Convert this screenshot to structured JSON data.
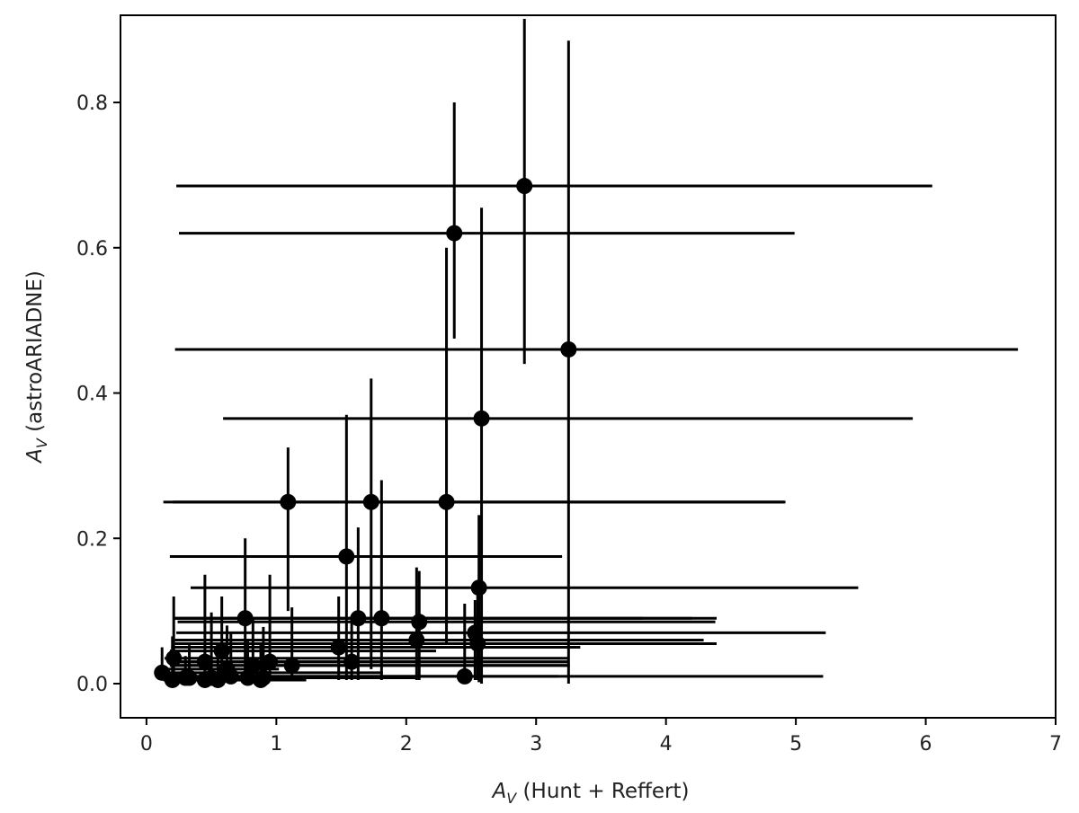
{
  "chart_data": {
    "type": "scatter",
    "title": "",
    "xlabel_math": "A",
    "xlabel_sub": "V",
    "xlabel_rest": " (Hunt + Reffert)",
    "ylabel_math": "A",
    "ylabel_sub": "V",
    "ylabel_rest": " (astroARIADNE)",
    "xlim": [
      -0.2,
      7.0
    ],
    "ylim": [
      -0.047,
      0.92
    ],
    "xticks": [
      0,
      1,
      2,
      3,
      4,
      5,
      6,
      7
    ],
    "yticks": [
      0.0,
      0.2,
      0.4,
      0.6,
      0.8
    ],
    "ytick_labels": [
      "0.0",
      "0.2",
      "0.4",
      "0.6",
      "0.8"
    ],
    "grid": false,
    "legend": false,
    "marker_color": "#000000",
    "series": [
      {
        "points": [
          {
            "x": 2.91,
            "y": 0.685,
            "xerr": [
              2.68,
              3.14
            ],
            "yerr": [
              0.245,
              0.23
            ]
          },
          {
            "x": 2.37,
            "y": 0.62,
            "xerr": [
              2.12,
              2.62
            ],
            "yerr": [
              0.145,
              0.18
            ]
          },
          {
            "x": 3.25,
            "y": 0.46,
            "xerr": [
              3.03,
              3.46
            ],
            "yerr": [
              0.46,
              0.425
            ]
          },
          {
            "x": 2.58,
            "y": 0.365,
            "xerr": [
              1.99,
              3.32
            ],
            "yerr": [
              0.365,
              0.29
            ]
          },
          {
            "x": 1.09,
            "y": 0.25,
            "xerr": [
              0.96,
              3.83
            ],
            "yerr": [
              0.15,
              0.075
            ]
          },
          {
            "x": 1.73,
            "y": 0.25,
            "xerr": [
              1.53,
              3.18
            ],
            "yerr": [
              0.23,
              0.17
            ]
          },
          {
            "x": 2.31,
            "y": 0.25,
            "xerr": [
              2.1,
              2.6
            ],
            "yerr": [
              0.195,
              0.35
            ]
          },
          {
            "x": 1.54,
            "y": 0.175,
            "xerr": [
              1.36,
              1.66
            ],
            "yerr": [
              0.17,
              0.195
            ]
          },
          {
            "x": 2.56,
            "y": 0.132,
            "xerr": [
              2.22,
              2.92
            ],
            "yerr": [
              0.13,
              0.1
            ]
          },
          {
            "x": 0.76,
            "y": 0.09,
            "xerr": [
              0.54,
              3.06
            ],
            "yerr": [
              0.085,
              0.11
            ]
          },
          {
            "x": 1.63,
            "y": 0.09,
            "xerr": [
              1.42,
              2.76
            ],
            "yerr": [
              0.085,
              0.125
            ]
          },
          {
            "x": 1.81,
            "y": 0.09,
            "xerr": [
              1.6,
              2.39
            ],
            "yerr": [
              0.085,
              0.19
            ]
          },
          {
            "x": 2.1,
            "y": 0.085,
            "xerr": [
              1.86,
              2.28
            ],
            "yerr": [
              0.08,
              0.07
            ]
          },
          {
            "x": 2.53,
            "y": 0.07,
            "xerr": [
              2.3,
              2.7
            ],
            "yerr": [
              0.065,
              0.045
            ]
          },
          {
            "x": 2.08,
            "y": 0.06,
            "xerr": [
              1.86,
              2.21
            ],
            "yerr": [
              0.055,
              0.1
            ]
          },
          {
            "x": 2.55,
            "y": 0.055,
            "xerr": [
              2.33,
              1.84
            ],
            "yerr": [
              0.05,
              0.07
            ]
          },
          {
            "x": 1.48,
            "y": 0.05,
            "xerr": [
              1.29,
              1.86
            ],
            "yerr": [
              0.045,
              0.07
            ]
          },
          {
            "x": 0.58,
            "y": 0.045,
            "xerr": [
              0.4,
              1.65
            ],
            "yerr": [
              0.04,
              0.075
            ]
          },
          {
            "x": 0.21,
            "y": 0.035,
            "xerr": [
              0.07,
              3.04
            ],
            "yerr": [
              0.03,
              0.085
            ]
          },
          {
            "x": 1.58,
            "y": 0.03,
            "xerr": [
              1.38,
              1.67
            ],
            "yerr": [
              0.025,
              0.06
            ]
          },
          {
            "x": 0.95,
            "y": 0.03,
            "xerr": [
              0.76,
              2.3
            ],
            "yerr": [
              0.025,
              0.12
            ]
          },
          {
            "x": 0.45,
            "y": 0.03,
            "xerr": [
              0.28,
              1.66
            ],
            "yerr": [
              0.025,
              0.12
            ]
          },
          {
            "x": 0.82,
            "y": 0.025,
            "xerr": [
              0.64,
              2.44
            ],
            "yerr": [
              0.02,
              0.065
            ]
          },
          {
            "x": 1.12,
            "y": 0.025,
            "xerr": [
              0.92,
              2.13
            ],
            "yerr": [
              0.02,
              0.08
            ]
          },
          {
            "x": 0.12,
            "y": 0.015,
            "xerr": [
              0.05,
              1.7
            ],
            "yerr": [
              0.01,
              0.035
            ]
          },
          {
            "x": 0.65,
            "y": 0.01,
            "xerr": [
              0.46,
              2.52
            ],
            "yerr": [
              0.005,
              0.06
            ]
          },
          {
            "x": 2.45,
            "y": 0.01,
            "xerr": [
              2.22,
              2.76
            ],
            "yerr": [
              0.005,
              0.1
            ]
          },
          {
            "x": 0.33,
            "y": 0.008,
            "xerr": [
              0.19,
              1.66
            ],
            "yerr": [
              0.005,
              0.045
            ]
          },
          {
            "x": 0.5,
            "y": 0.008,
            "xerr": [
              0.34,
              1.58
            ],
            "yerr": [
              0.005,
              0.09
            ]
          },
          {
            "x": 0.2,
            "y": 0.005,
            "xerr": [
              0.07,
              0.7
            ],
            "yerr": [
              0.004,
              0.06
            ]
          },
          {
            "x": 0.3,
            "y": 0.008,
            "xerr": [
              0.17,
              0.8
            ],
            "yerr": [
              0.005,
              0.03
            ]
          },
          {
            "x": 0.45,
            "y": 0.005,
            "xerr": [
              0.3,
              0.7
            ],
            "yerr": [
              0.004,
              0.04
            ]
          },
          {
            "x": 0.55,
            "y": 0.005,
            "xerr": [
              0.4,
              0.6
            ],
            "yerr": [
              0.004,
              0.04
            ]
          },
          {
            "x": 0.78,
            "y": 0.008,
            "xerr": [
              0.6,
              1.0
            ],
            "yerr": [
              0.005,
              0.05
            ]
          },
          {
            "x": 0.9,
            "y": 0.008,
            "xerr": [
              0.72,
              0.75
            ],
            "yerr": [
              0.005,
              0.07
            ]
          },
          {
            "x": 0.88,
            "y": 0.005,
            "xerr": [
              0.7,
              0.35
            ],
            "yerr": [
              0.004,
              0.05
            ]
          },
          {
            "x": 0.62,
            "y": 0.02,
            "xerr": [
              0.45,
              0.4
            ],
            "yerr": [
              0.015,
              0.06
            ]
          }
        ]
      }
    ]
  }
}
